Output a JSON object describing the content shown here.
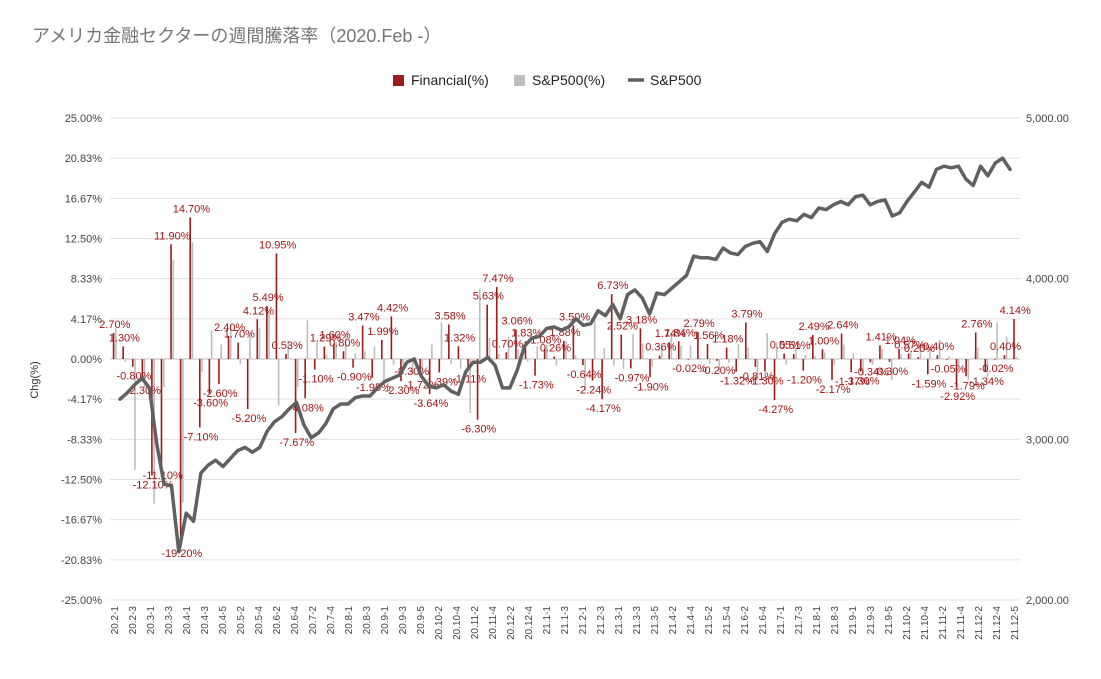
{
  "title": "アメリカ金融セクターの週間騰落率（2020.Feb -）",
  "colors": {
    "financial": "#9e1b1b",
    "sp500_pct": "#bdbdbd",
    "sp500_line": "#606060",
    "label": "#a31515"
  },
  "chart_data": {
    "type": "bar",
    "title": "アメリカ金融セクターの週間騰落率（2020.Feb -）",
    "legend": [
      "Financial(%)",
      "S&P500(%)",
      "S&P500"
    ],
    "legend_position": "top-center",
    "ylabel": "Chg(%)",
    "grid": true,
    "left_axis": {
      "ticks": [
        "25.00%",
        "20.83%",
        "16.67%",
        "12.50%",
        "8.33%",
        "4.17%",
        "0.00%",
        "-4.17%",
        "-8.33%",
        "-12.50%",
        "-16.67%",
        "-20.83%",
        "-25.00%"
      ],
      "range": [
        -25,
        25
      ]
    },
    "right_axis": {
      "ticks": [
        "5,000.00",
        "4,000.00",
        "3,000.00",
        "2,000.00"
      ],
      "range": [
        2000,
        5000
      ]
    },
    "x_labels": [
      "20.2-1",
      "20.2-3",
      "20.3-1",
      "20.3-3",
      "20.4-1",
      "20.4-3",
      "20.4-5",
      "20.5-2",
      "20.5-4",
      "20.6-2",
      "20.6-4",
      "20.7-2",
      "20.7-4",
      "20.8-1",
      "20.8-3",
      "20.9-1",
      "20.9-3",
      "20.9-5",
      "20.10-2",
      "20.10-4",
      "20.11-2",
      "20.11-4",
      "20.12-2",
      "20.12-4",
      "21.1-1",
      "21.1-3",
      "21.2-1",
      "21.2-3",
      "21.3-1",
      "21.3-3",
      "21.3-5",
      "21.4-2",
      "21.4-4",
      "21.5-2",
      "21.5-4",
      "21.6-2",
      "21.6-4",
      "21.7-1",
      "21.7-3",
      "21.8-1",
      "21.8-3",
      "21.9-1",
      "21.9-3",
      "21.9-5",
      "21.10-2",
      "21.10-4",
      "21.11-2",
      "21.11-4",
      "21.12-2",
      "21.12-4",
      "21.12-5"
    ],
    "series": [
      {
        "name": "Financial(%)",
        "values": [
          2.7,
          1.3,
          -0.8,
          -2.3,
          -12.1,
          -11.1,
          11.9,
          -19.2,
          14.7,
          -7.1,
          -3.6,
          -2.6,
          2.4,
          1.7,
          -5.2,
          4.12,
          5.49,
          10.95,
          0.53,
          -7.67,
          -4.08,
          -1.1,
          1.29,
          1.6,
          0.8,
          -0.9,
          3.47,
          -1.95,
          1.99,
          4.42,
          -2.3,
          -0.3,
          -1.72,
          -3.64,
          -1.39,
          3.58,
          1.32,
          -1.11,
          -6.3,
          5.63,
          7.47,
          0.7,
          3.06,
          1.83,
          -1.73,
          1.08,
          0.26,
          1.88,
          3.5,
          -0.64,
          -2.24,
          -4.17,
          6.73,
          2.52,
          -0.97,
          3.18,
          -1.9,
          0.36,
          1.74,
          1.84,
          -0.02,
          2.79,
          1.56,
          -0.2,
          1.18,
          -1.32,
          3.79,
          -0.81,
          -1.3,
          -4.27,
          0.55,
          0.51,
          -1.2,
          2.49,
          1.0,
          -2.17,
          2.64,
          -1.37,
          -1.3,
          -0.34,
          1.41,
          -0.3,
          1.04,
          0.57,
          0.2,
          -1.59,
          0.4,
          -0.05,
          -2.92,
          -1.79,
          2.76,
          -1.34,
          -0.02,
          0.4,
          4.14
        ]
      },
      {
        "name": "S&P500(%)",
        "values": [
          3.2,
          -0.3,
          -11.5,
          -3.0,
          -15.0,
          -2.9,
          10.3,
          -14.9,
          12.1,
          -1.3,
          3.0,
          1.5,
          3.5,
          -0.5,
          2.7,
          3.2,
          4.9,
          -4.8,
          1.9,
          -2.9,
          4.0,
          1.8,
          0.5,
          1.7,
          2.5,
          0.6,
          0.8,
          1.3,
          -2.5,
          -0.6,
          -0.7,
          -1.6,
          -1.2,
          1.5,
          3.8,
          -0.5,
          -1.0,
          -5.6,
          7.3,
          2.2,
          0.5,
          2.3,
          1.0,
          -0.3,
          1.3,
          1.5,
          -0.7,
          1.9,
          0.4,
          -3.3,
          4.6,
          1.1,
          -0.7,
          -1.0,
          2.6,
          1.6,
          -0.8,
          1.3,
          2.7,
          1.4,
          1.4,
          -0.1,
          -0.5,
          -1.4,
          -0.4,
          1.6,
          1.2,
          -1.9,
          2.7,
          1.7,
          -0.6,
          1.0,
          0.4,
          0.3,
          0.7,
          -0.6,
          1.5,
          0.6,
          -1.7,
          -0.6,
          1.1,
          -2.2,
          0.5,
          0.8,
          1.6,
          1.3,
          2.0,
          0.3,
          -0.6,
          -2.2,
          1.2,
          -1.9,
          3.8,
          2.3,
          0.2
        ]
      },
      {
        "name": "S&P500",
        "values": [
          3250,
          3290,
          3340,
          3380,
          3320,
          2970,
          2720,
          2710,
          2300,
          2540,
          2490,
          2790,
          2840,
          2870,
          2830,
          2880,
          2930,
          2950,
          2920,
          2950,
          3050,
          3110,
          3140,
          3190,
          3230,
          3090,
          3010,
          3040,
          3100,
          3190,
          3220,
          3220,
          3260,
          3270,
          3270,
          3320,
          3360,
          3380,
          3400,
          3480,
          3500,
          3390,
          3330,
          3320,
          3340,
          3300,
          3280,
          3420,
          3480,
          3480,
          3510,
          3460,
          3320,
          3320,
          3430,
          3580,
          3630,
          3640,
          3690,
          3700,
          3680,
          3700,
          3750,
          3710,
          3720,
          3800,
          3770,
          3840,
          3750,
          3900,
          3930,
          3880,
          3780,
          3910,
          3900,
          3940,
          3980,
          4020,
          4140,
          4130,
          4130,
          4120,
          4190,
          4160,
          4150,
          4200,
          4220,
          4230,
          4170,
          4280,
          4350,
          4370,
          4360,
          4400,
          4380,
          4440,
          4430,
          4460,
          4480,
          4460,
          4510,
          4520,
          4460,
          4480,
          4490,
          4390,
          4410,
          4480,
          4540,
          4600,
          4570,
          4680,
          4700,
          4690,
          4700,
          4620,
          4580,
          4700,
          4640,
          4720,
          4750,
          4680
        ]
      }
    ]
  }
}
